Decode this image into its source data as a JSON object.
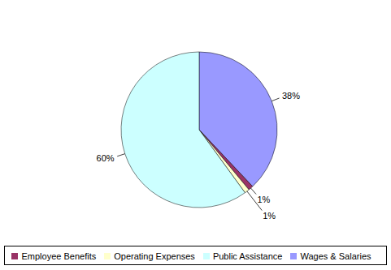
{
  "chart_data": {
    "type": "pie",
    "categories": [
      "Wages & Salaries",
      "Employee Benefits",
      "Operating Expenses",
      "Public Assistance"
    ],
    "values": [
      38,
      1,
      1,
      60
    ],
    "value_labels": [
      "38%",
      "1%",
      "1%",
      "60%"
    ],
    "colors": [
      "#9999FF",
      "#993366",
      "#FFFFCC",
      "#CCFFFF"
    ],
    "data_labels": true,
    "legend": "bottom"
  }
}
